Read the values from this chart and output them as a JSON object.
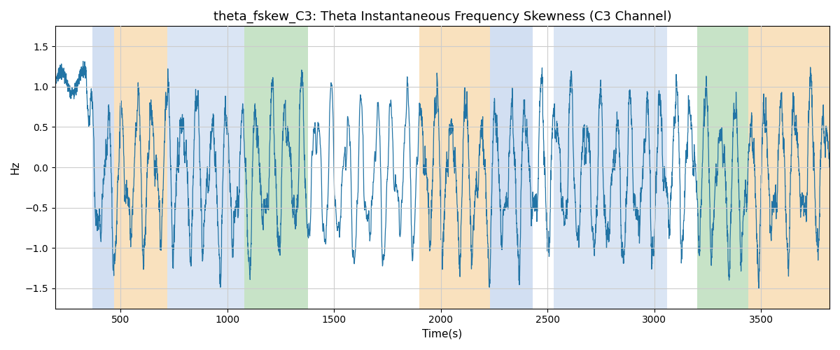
{
  "title": "theta_fskew_C3: Theta Instantaneous Frequency Skewness (C3 Channel)",
  "xlabel": "Time(s)",
  "ylabel": "Hz",
  "ylim": [
    -1.75,
    1.75
  ],
  "xlim": [
    195,
    3820
  ],
  "line_color": "#2274a5",
  "line_width": 0.9,
  "background_color": "#ffffff",
  "grid_color": "#cccccc",
  "title_fontsize": 13,
  "label_fontsize": 11,
  "bands": [
    {
      "start": 370,
      "end": 470,
      "color": "#aec6e8",
      "alpha": 0.55
    },
    {
      "start": 470,
      "end": 720,
      "color": "#f5c98a",
      "alpha": 0.55
    },
    {
      "start": 720,
      "end": 1080,
      "color": "#aec6e8",
      "alpha": 0.45
    },
    {
      "start": 1080,
      "end": 1380,
      "color": "#90c990",
      "alpha": 0.5
    },
    {
      "start": 1900,
      "end": 2230,
      "color": "#f5c98a",
      "alpha": 0.55
    },
    {
      "start": 2230,
      "end": 2430,
      "color": "#aec6e8",
      "alpha": 0.55
    },
    {
      "start": 2530,
      "end": 3060,
      "color": "#aec6e8",
      "alpha": 0.45
    },
    {
      "start": 3200,
      "end": 3440,
      "color": "#90c990",
      "alpha": 0.5
    },
    {
      "start": 3440,
      "end": 3820,
      "color": "#f5c98a",
      "alpha": 0.55
    }
  ],
  "t_start": 200,
  "t_end": 3820,
  "n_points": 5000,
  "seed": 7
}
